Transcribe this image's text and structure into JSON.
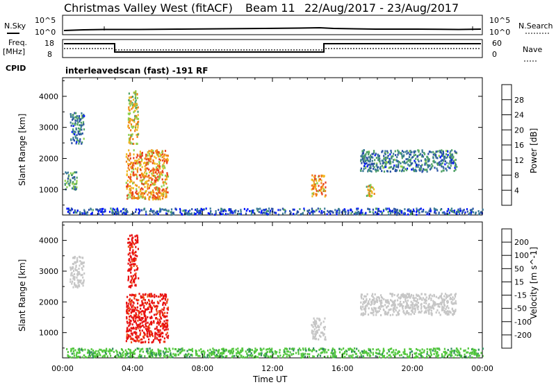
{
  "header": {
    "title": "Christmas Valley West (fitACF)",
    "beam": "Beam 11",
    "dates": "22/Aug/2017 - 23/Aug/2017"
  },
  "top_panels": {
    "nsky_label": "N.Sky",
    "nsky_ticks": [
      "10^5",
      "10^0"
    ],
    "nsearch_label": "N.Search",
    "nsearch_ticks": [
      "10^5",
      "10^0"
    ],
    "freq_label_1": "Freq.",
    "freq_label_2": "[MHz]",
    "freq_ticks": [
      "18",
      "8"
    ],
    "nave_label": "Nave",
    "nave_ticks": [
      "60",
      "0"
    ],
    "cpid_label": "CPID",
    "cpid_text": "interleavedscan (fast) -191 RF"
  },
  "colors": {
    "power_scale": [
      "#0015ff",
      "#2a4fa6",
      "#3a7a98",
      "#4ea165",
      "#8fcf4a",
      "#f0b820",
      "#f08018",
      "#e8401a",
      "#e40d10"
    ],
    "velocity_scale": [
      "#1a2fc8",
      "#2f5d95",
      "#2e8a5c",
      "#54c73f",
      "#c6c6c6",
      "#f2c33a",
      "#f08a22",
      "#ee5418",
      "#e81010"
    ]
  },
  "chart_data": [
    {
      "type": "heatmap",
      "title": "Power",
      "ylabel": "Slant Range [km]",
      "xlabel": "",
      "x_ticks": [
        "00:00",
        "04:00",
        "08:00",
        "12:00",
        "16:00",
        "20:00",
        "00:00"
      ],
      "y_ticks": [
        1000,
        2000,
        3000,
        4000
      ],
      "ylim": [
        180,
        4600
      ],
      "colorbar_label": "Power [dB]",
      "colorbar_ticks": [
        4,
        8,
        12,
        16,
        20,
        24,
        28
      ],
      "colorbar_range": [
        0,
        32
      ],
      "features": [
        {
          "t0": 0.2,
          "t1": 24.0,
          "r0": 220,
          "r1": 420,
          "v": 6
        },
        {
          "t0": 3.6,
          "t1": 6.0,
          "r0": 700,
          "r1": 2300,
          "v": 22
        },
        {
          "t0": 3.7,
          "t1": 4.3,
          "r0": 2500,
          "r1": 4200,
          "v": 18
        },
        {
          "t0": 0.4,
          "t1": 1.2,
          "r0": 2500,
          "r1": 3500,
          "v": 9
        },
        {
          "t0": 0.1,
          "t1": 0.8,
          "r0": 1000,
          "r1": 1600,
          "v": 12
        },
        {
          "t0": 14.2,
          "t1": 15.0,
          "r0": 800,
          "r1": 1500,
          "v": 22
        },
        {
          "t0": 17.0,
          "t1": 22.5,
          "r0": 1600,
          "r1": 2300,
          "v": 9
        },
        {
          "t0": 17.3,
          "t1": 17.8,
          "r0": 800,
          "r1": 1200,
          "v": 18
        }
      ]
    },
    {
      "type": "heatmap",
      "title": "Velocity",
      "ylabel": "Slant Range [km]",
      "xlabel": "Time UT",
      "x_ticks": [
        "00:00",
        "04:00",
        "08:00",
        "12:00",
        "16:00",
        "20:00",
        "00:00"
      ],
      "y_ticks": [
        1000,
        2000,
        3000,
        4000
      ],
      "ylim": [
        180,
        4600
      ],
      "colorbar_label": "Velocity [m s^-1]",
      "colorbar_ticks": [
        200,
        100,
        50,
        15,
        -15,
        -50,
        -100,
        -200
      ],
      "features": [
        {
          "t0": 0.2,
          "t1": 24.0,
          "r0": 220,
          "r1": 520,
          "v": 40
        },
        {
          "t0": 3.6,
          "t1": 6.0,
          "r0": 700,
          "r1": 2300,
          "v": -220
        },
        {
          "t0": 3.7,
          "t1": 4.3,
          "r0": 2500,
          "r1": 4200,
          "v": -220
        },
        {
          "t0": 0.4,
          "t1": 1.2,
          "r0": 2500,
          "r1": 3500,
          "v": 0
        },
        {
          "t0": 14.2,
          "t1": 15.0,
          "r0": 800,
          "r1": 1500,
          "v": 0
        },
        {
          "t0": 17.0,
          "t1": 22.5,
          "r0": 1600,
          "r1": 2300,
          "v": 0
        }
      ]
    }
  ]
}
